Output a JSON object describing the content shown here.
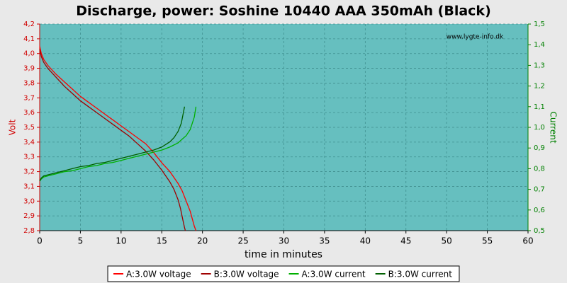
{
  "chart_data": {
    "type": "line",
    "title": "Discharge, power: Soshine 10440 AAA 350mAh (Black)",
    "annotation": "www.lygte-info.dk",
    "xlabel": "time in minutes",
    "ylabel": "Volt",
    "y2label": "Current",
    "xlim": [
      0,
      60
    ],
    "xticks": [
      0,
      5,
      10,
      15,
      20,
      25,
      30,
      35,
      40,
      45,
      50,
      55,
      60
    ],
    "ylim": [
      2.8,
      4.2
    ],
    "yticks": [
      {
        "value": 2.8,
        "label": "2,8"
      },
      {
        "value": 2.9,
        "label": "2,9"
      },
      {
        "value": 3.0,
        "label": "3,0"
      },
      {
        "value": 3.1,
        "label": "3,1"
      },
      {
        "value": 3.2,
        "label": "3,2"
      },
      {
        "value": 3.3,
        "label": "3,3"
      },
      {
        "value": 3.4,
        "label": "3,4"
      },
      {
        "value": 3.5,
        "label": "3,5"
      },
      {
        "value": 3.6,
        "label": "3,6"
      },
      {
        "value": 3.7,
        "label": "3,7"
      },
      {
        "value": 3.8,
        "label": "3,8"
      },
      {
        "value": 3.9,
        "label": "3,9"
      },
      {
        "value": 4.0,
        "label": "4,0"
      },
      {
        "value": 4.1,
        "label": "4,1"
      },
      {
        "value": 4.2,
        "label": "4,2"
      }
    ],
    "y2lim": [
      0.5,
      1.5
    ],
    "y2ticks": [
      {
        "value": 0.5,
        "label": "0,5"
      },
      {
        "value": 0.6,
        "label": "0,6"
      },
      {
        "value": 0.7,
        "label": "0,7"
      },
      {
        "value": 0.8,
        "label": "0,8"
      },
      {
        "value": 0.9,
        "label": "0,9"
      },
      {
        "value": 1.0,
        "label": "1,0"
      },
      {
        "value": 1.1,
        "label": "1,1"
      },
      {
        "value": 1.2,
        "label": "1,2"
      },
      {
        "value": 1.3,
        "label": "1,3"
      },
      {
        "value": 1.4,
        "label": "1,4"
      },
      {
        "value": 1.5,
        "label": "1,5"
      }
    ],
    "grid": true,
    "legend": "bottom",
    "series": [
      {
        "name": "A:3.0W voltage",
        "color": "#ff0000",
        "x": [
          0,
          0.2,
          0.5,
          1,
          2,
          3,
          4,
          5,
          6,
          7,
          8,
          9,
          10,
          11,
          12,
          13,
          14,
          15,
          16,
          17,
          17.5,
          18,
          18.5,
          18.8,
          19,
          19.2
        ],
        "values": [
          4.05,
          4.0,
          3.96,
          3.92,
          3.86,
          3.81,
          3.76,
          3.71,
          3.67,
          3.63,
          3.59,
          3.55,
          3.51,
          3.47,
          3.43,
          3.39,
          3.33,
          3.26,
          3.2,
          3.12,
          3.07,
          3.0,
          2.93,
          2.87,
          2.83,
          2.8
        ]
      },
      {
        "name": "B:3.0W voltage",
        "color": "#a00000",
        "x": [
          0,
          0.2,
          0.5,
          1,
          2,
          3,
          4,
          5,
          6,
          7,
          8,
          9,
          10,
          11,
          12,
          13,
          14,
          15,
          16,
          16.5,
          17,
          17.3,
          17.6,
          17.8,
          17.9
        ],
        "values": [
          4.03,
          3.98,
          3.94,
          3.9,
          3.84,
          3.78,
          3.73,
          3.68,
          3.64,
          3.6,
          3.56,
          3.52,
          3.48,
          3.44,
          3.39,
          3.34,
          3.28,
          3.21,
          3.13,
          3.08,
          3.01,
          2.95,
          2.87,
          2.82,
          2.8
        ]
      },
      {
        "name": "A:3.0W current",
        "color": "#00b000",
        "axis": "y2",
        "x": [
          0,
          0.2,
          0.5,
          1,
          2,
          3,
          4,
          5,
          6,
          7,
          8,
          9,
          10,
          11,
          12,
          13,
          14,
          15,
          16,
          17,
          18,
          18.5,
          19,
          19.2
        ],
        "values": [
          0.74,
          0.75,
          0.76,
          0.765,
          0.775,
          0.785,
          0.79,
          0.8,
          0.81,
          0.815,
          0.825,
          0.83,
          0.84,
          0.85,
          0.86,
          0.87,
          0.88,
          0.89,
          0.905,
          0.925,
          0.96,
          0.99,
          1.05,
          1.1
        ]
      },
      {
        "name": "B:3.0W current",
        "color": "#006000",
        "axis": "y2",
        "x": [
          0,
          0.2,
          0.5,
          1,
          2,
          3,
          4,
          5,
          6,
          7,
          8,
          9,
          10,
          11,
          12,
          13,
          14,
          15,
          16,
          16.5,
          17,
          17.4,
          17.7,
          17.8
        ],
        "values": [
          0.74,
          0.755,
          0.765,
          0.77,
          0.78,
          0.79,
          0.8,
          0.81,
          0.815,
          0.825,
          0.83,
          0.84,
          0.85,
          0.86,
          0.87,
          0.88,
          0.89,
          0.905,
          0.93,
          0.95,
          0.98,
          1.02,
          1.08,
          1.1
        ]
      }
    ]
  }
}
